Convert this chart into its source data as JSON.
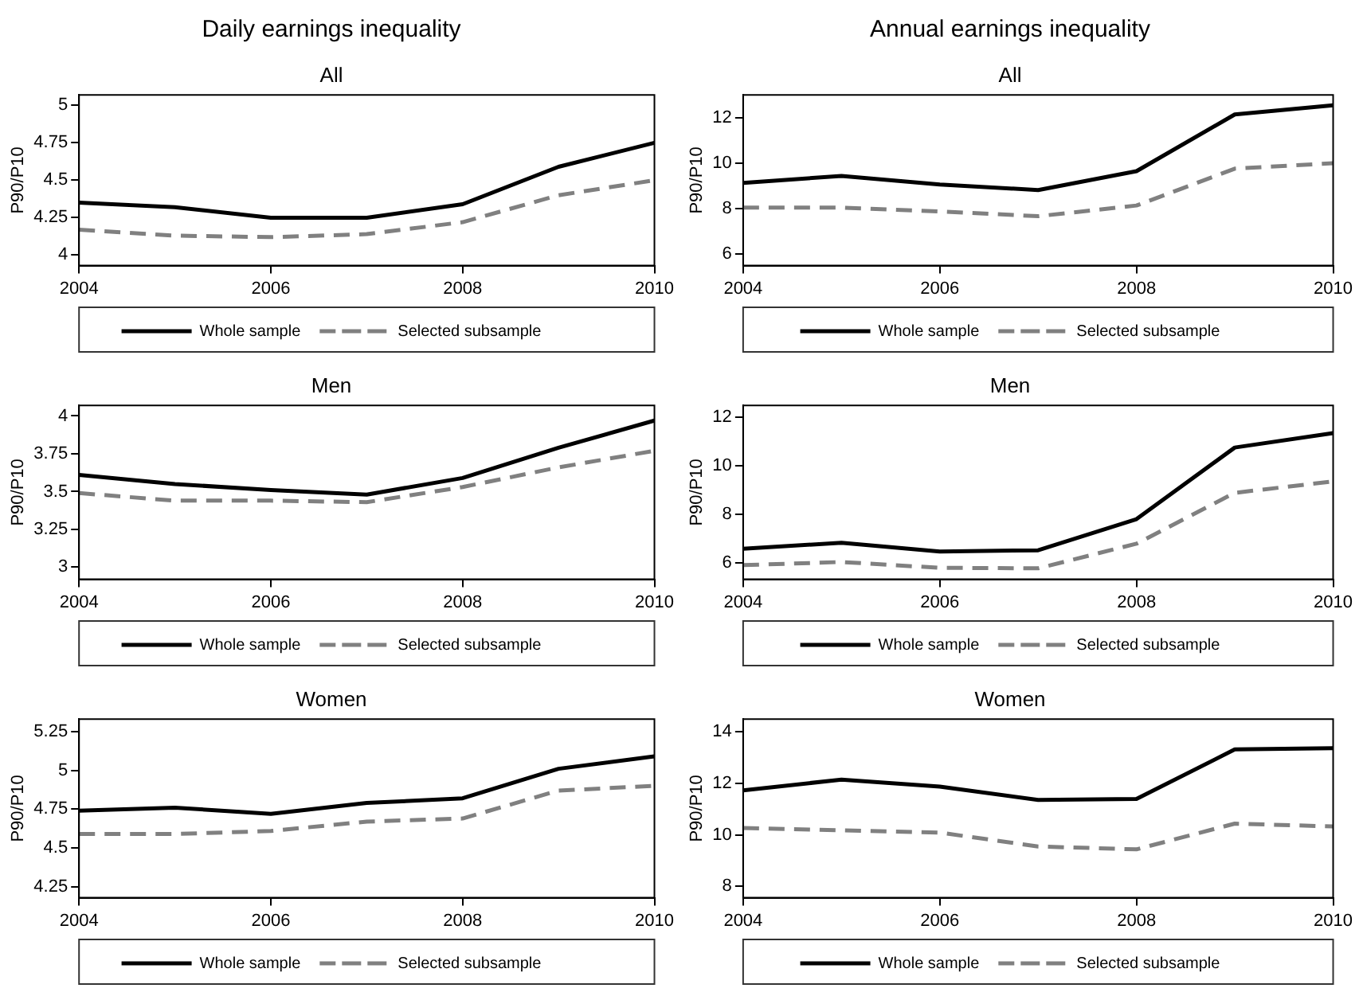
{
  "chart_data": [
    {
      "type": "line",
      "title": "Daily earnings inequality",
      "subtitle": "All",
      "ylabel": "P90/P10",
      "x": [
        2004,
        2005,
        2006,
        2007,
        2008,
        2009,
        2010
      ],
      "xlim": [
        2004,
        2010
      ],
      "xticks": [
        2004,
        2006,
        2008,
        2010
      ],
      "ylim": [
        3.93,
        5.07
      ],
      "yticks": [
        4,
        4.25,
        4.5,
        4.75,
        5
      ],
      "legend": "bottom",
      "marker": "none",
      "series": [
        {
          "name": "Whole sample",
          "color": "#000000",
          "line_style": "solid",
          "values": [
            4.35,
            4.32,
            4.25,
            4.25,
            4.34,
            4.59,
            4.75
          ]
        },
        {
          "name": "Selected subsample",
          "color": "#808080",
          "line_style": "dashed",
          "values": [
            4.17,
            4.13,
            4.12,
            4.14,
            4.22,
            4.4,
            4.5
          ]
        }
      ]
    },
    {
      "type": "line",
      "title": "Annual earnings inequality",
      "subtitle": "All",
      "ylabel": "P90/P10",
      "x": [
        2004,
        2005,
        2006,
        2007,
        2008,
        2009,
        2010
      ],
      "xlim": [
        2004,
        2010
      ],
      "xticks": [
        2004,
        2006,
        2008,
        2010
      ],
      "ylim": [
        5.5,
        13
      ],
      "yticks": [
        6,
        8,
        10,
        12
      ],
      "legend": "bottom",
      "marker": "none",
      "series": [
        {
          "name": "Whole sample",
          "color": "#000000",
          "line_style": "solid",
          "values": [
            9.13,
            9.44,
            9.06,
            8.82,
            9.65,
            12.14,
            12.54
          ]
        },
        {
          "name": "Selected subsample",
          "color": "#808080",
          "line_style": "dashed",
          "values": [
            8.05,
            8.05,
            7.88,
            7.67,
            8.14,
            9.76,
            10.0
          ]
        }
      ]
    },
    {
      "type": "line",
      "title": "Men",
      "ylabel": "P90/P10",
      "x": [
        2004,
        2005,
        2006,
        2007,
        2008,
        2009,
        2010
      ],
      "xlim": [
        2004,
        2010
      ],
      "xticks": [
        2004,
        2006,
        2008,
        2010
      ],
      "ylim": [
        2.92,
        4.07
      ],
      "yticks": [
        3,
        3.25,
        3.5,
        3.75,
        4
      ],
      "legend": "bottom",
      "marker": "none",
      "series": [
        {
          "name": "Whole sample",
          "color": "#000000",
          "line_style": "solid",
          "values": [
            3.61,
            3.55,
            3.51,
            3.48,
            3.59,
            3.79,
            3.97
          ]
        },
        {
          "name": "Selected subsample",
          "color": "#808080",
          "line_style": "dashed",
          "values": [
            3.49,
            3.44,
            3.44,
            3.43,
            3.53,
            3.66,
            3.77
          ]
        }
      ]
    },
    {
      "type": "line",
      "title": "Men",
      "ylabel": "P90/P10",
      "x": [
        2004,
        2005,
        2006,
        2007,
        2008,
        2009,
        2010
      ],
      "xlim": [
        2004,
        2010
      ],
      "xticks": [
        2004,
        2006,
        2008,
        2010
      ],
      "ylim": [
        5.33,
        12.47
      ],
      "yticks": [
        6,
        8,
        10,
        12
      ],
      "legend": "bottom",
      "marker": "none",
      "series": [
        {
          "name": "Whole sample",
          "color": "#000000",
          "line_style": "solid",
          "values": [
            6.58,
            6.83,
            6.47,
            6.52,
            7.8,
            10.74,
            11.33
          ]
        },
        {
          "name": "Selected subsample",
          "color": "#808080",
          "line_style": "dashed",
          "values": [
            5.91,
            6.04,
            5.8,
            5.78,
            6.79,
            8.88,
            9.35
          ]
        }
      ]
    },
    {
      "type": "line",
      "title": "Women",
      "ylabel": "P90/P10",
      "x": [
        2004,
        2005,
        2006,
        2007,
        2008,
        2009,
        2010
      ],
      "xlim": [
        2004,
        2010
      ],
      "xticks": [
        2004,
        2006,
        2008,
        2010
      ],
      "ylim": [
        4.18,
        5.33
      ],
      "yticks": [
        4.25,
        4.5,
        4.75,
        5,
        5.25
      ],
      "legend": "bottom",
      "marker": "none",
      "series": [
        {
          "name": "Whole sample",
          "color": "#000000",
          "line_style": "solid",
          "values": [
            4.74,
            4.76,
            4.72,
            4.79,
            4.82,
            5.01,
            5.09
          ]
        },
        {
          "name": "Selected subsample",
          "color": "#808080",
          "line_style": "dashed",
          "values": [
            4.59,
            4.59,
            4.61,
            4.67,
            4.69,
            4.87,
            4.9
          ]
        }
      ]
    },
    {
      "type": "line",
      "title": "Women",
      "ylabel": "P90/P10",
      "x": [
        2004,
        2005,
        2006,
        2007,
        2008,
        2009,
        2010
      ],
      "xlim": [
        2004,
        2010
      ],
      "xticks": [
        2004,
        2006,
        2008,
        2010
      ],
      "ylim": [
        7.56,
        14.5
      ],
      "yticks": [
        8,
        10,
        12,
        14
      ],
      "legend": "bottom",
      "marker": "none",
      "series": [
        {
          "name": "Whole sample",
          "color": "#000000",
          "line_style": "solid",
          "values": [
            11.73,
            12.15,
            11.88,
            11.36,
            11.4,
            13.32,
            13.37
          ]
        },
        {
          "name": "Selected subsample",
          "color": "#808080",
          "line_style": "dashed",
          "values": [
            10.27,
            10.18,
            10.09,
            9.55,
            9.44,
            10.44,
            10.33
          ]
        }
      ]
    }
  ]
}
